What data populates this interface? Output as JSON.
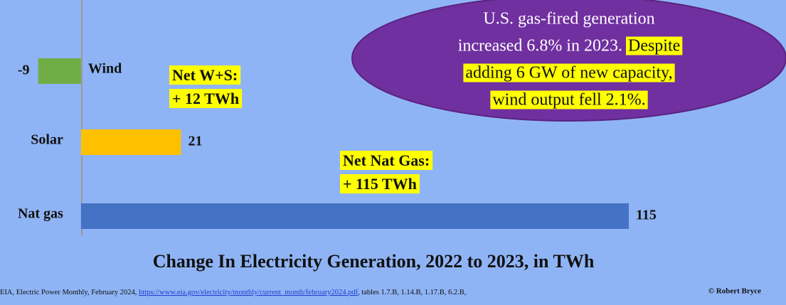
{
  "chart_data": {
    "type": "hbar",
    "title": "Change In Electricity Generation, 2022 to 2023, in TWh",
    "categories": [
      "Wind",
      "Solar",
      "Nat gas"
    ],
    "values": [
      -9,
      21,
      115
    ],
    "colors": [
      "#70ad47",
      "#ffc000",
      "#4472c4"
    ],
    "xlim": [
      -17,
      148
    ],
    "annotations": [
      {
        "lines": [
          "Net W+S:",
          "+ 12 TWh"
        ],
        "color": "#ffff00"
      },
      {
        "lines": [
          "Net Nat Gas:",
          "+ 115 TWh"
        ],
        "color": "#ffff00"
      }
    ],
    "callout": {
      "color": "#7030a0",
      "lines": [
        [
          {
            "text": "U.S. gas-fired generation",
            "highlight": false
          }
        ],
        [
          {
            "text": "increased 6.8% in 2023.",
            "highlight": false
          },
          {
            "text": "Despite",
            "highlight": true
          }
        ],
        [
          {
            "text": "adding 6 GW of new capacity,",
            "highlight": true
          }
        ],
        [
          {
            "text": "wind output fell 2.1%.",
            "highlight": true
          }
        ]
      ]
    },
    "source": {
      "text": "EIA, Electric Power Monthly, February 2024,",
      "link": "https://www.eia.gov/electricity/monthly/current_month/february2024.pdf",
      "tables": ", tables 1.7.B, 1.14.B, 1.17.B, 6.2.B,"
    },
    "credit": "© Robert Bryce"
  }
}
